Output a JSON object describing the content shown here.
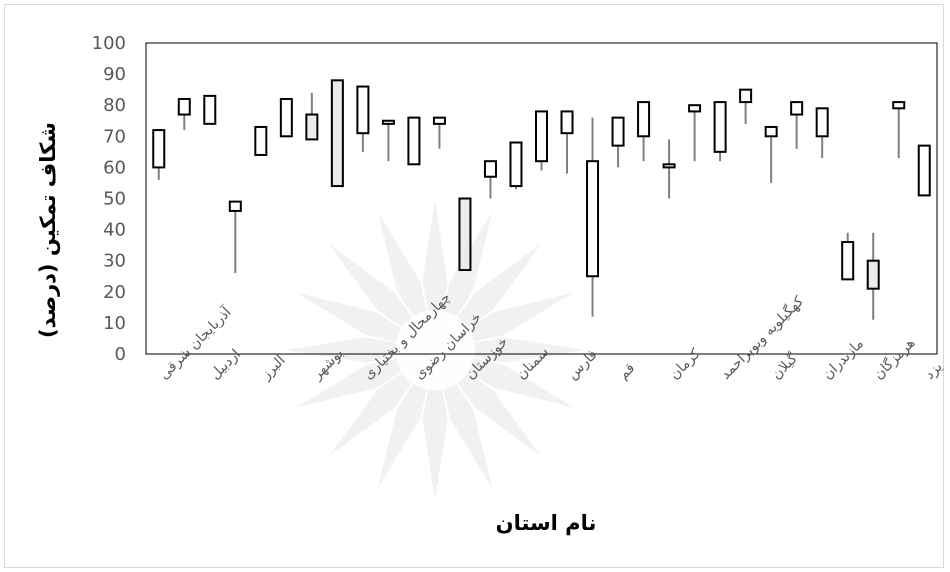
{
  "chart_data": {
    "type": "candlestick",
    "xlabel": "نام استان",
    "ylabel": "شکاف تمکین (درصد)",
    "ylim": [
      0,
      100
    ],
    "yticks": [
      0,
      10,
      20,
      30,
      40,
      50,
      60,
      70,
      80,
      90,
      100
    ],
    "grid": false,
    "legend": "none",
    "categories": [
      "آذربایجان شرقی",
      "",
      "اردبیل",
      "",
      "البرز",
      "",
      "بوشهر",
      "",
      "چهارمحال و بختیاری",
      "",
      "خراسان رضوی",
      "",
      "خوزستان",
      "",
      "سمنان",
      "",
      "فارس",
      "",
      "قم",
      "",
      "کرمان",
      "",
      "کهگیلویه وبویراحمد",
      "",
      "گیلان",
      "",
      "مازندران",
      "",
      "هرمزگان",
      "",
      "یزد"
    ],
    "values": [
      {
        "open": 72,
        "close": 60,
        "high": 72,
        "low": 56,
        "fill": "#ffffff"
      },
      {
        "open": 82,
        "close": 77,
        "high": 82,
        "low": 72,
        "fill": "#ffffff"
      },
      {
        "open": 83,
        "close": 74,
        "high": 83,
        "low": 74,
        "fill": "#ffffff"
      },
      {
        "open": 49,
        "close": 46,
        "high": 49,
        "low": 26,
        "fill": "#ffffff"
      },
      {
        "open": 73,
        "close": 64,
        "high": 73,
        "low": 64,
        "fill": "#ffffff"
      },
      {
        "open": 82,
        "close": 70,
        "high": 82,
        "low": 70,
        "fill": "#ffffff"
      },
      {
        "open": 77,
        "close": 69,
        "high": 84,
        "low": 69,
        "fill": "#ebebeb"
      },
      {
        "open": 88,
        "close": 54,
        "high": 88,
        "low": 54,
        "fill": "#ebebeb"
      },
      {
        "open": 86,
        "close": 71,
        "high": 86,
        "low": 65,
        "fill": "#ffffff"
      },
      {
        "open": 75,
        "close": 74,
        "high": 75,
        "low": 62,
        "fill": "#ffffff"
      },
      {
        "open": 76,
        "close": 61,
        "high": 76,
        "low": 61,
        "fill": "#ffffff"
      },
      {
        "open": 76,
        "close": 74,
        "high": 76,
        "low": 66,
        "fill": "#ffffff"
      },
      {
        "open": 50,
        "close": 27,
        "high": 50,
        "low": 27,
        "fill": "#ebebeb"
      },
      {
        "open": 62,
        "close": 57,
        "high": 62,
        "low": 50,
        "fill": "#ffffff"
      },
      {
        "open": 68,
        "close": 54,
        "high": 68,
        "low": 53,
        "fill": "#ffffff"
      },
      {
        "open": 78,
        "close": 62,
        "high": 78,
        "low": 59,
        "fill": "#ffffff"
      },
      {
        "open": 78,
        "close": 71,
        "high": 78,
        "low": 58,
        "fill": "#ffffff"
      },
      {
        "open": 62,
        "close": 25,
        "high": 76,
        "low": 12,
        "fill": "#ffffff"
      },
      {
        "open": 76,
        "close": 67,
        "high": 76,
        "low": 60,
        "fill": "#ffffff"
      },
      {
        "open": 81,
        "close": 70,
        "high": 81,
        "low": 62,
        "fill": "#ffffff"
      },
      {
        "open": 61,
        "close": 60,
        "high": 69,
        "low": 50,
        "fill": "#ffffff"
      },
      {
        "open": 80,
        "close": 78,
        "high": 80,
        "low": 62,
        "fill": "#ffffff"
      },
      {
        "open": 81,
        "close": 65,
        "high": 81,
        "low": 62,
        "fill": "#ffffff"
      },
      {
        "open": 85,
        "close": 81,
        "high": 85,
        "low": 74,
        "fill": "#ffffff"
      },
      {
        "open": 73,
        "close": 70,
        "high": 73,
        "low": 55,
        "fill": "#ffffff"
      },
      {
        "open": 81,
        "close": 77,
        "high": 81,
        "low": 66,
        "fill": "#ffffff"
      },
      {
        "open": 79,
        "close": 70,
        "high": 79,
        "low": 63,
        "fill": "#ffffff"
      },
      {
        "open": 36,
        "close": 24,
        "high": 39,
        "low": 24,
        "fill": "#ffffff"
      },
      {
        "open": 30,
        "close": 21,
        "high": 39,
        "low": 11,
        "fill": "#ebebeb"
      },
      {
        "open": 81,
        "close": 79,
        "high": 81,
        "low": 63,
        "fill": "#ffffff"
      },
      {
        "open": 67,
        "close": 51,
        "high": 67,
        "low": 51,
        "fill": "#ffffff"
      }
    ]
  },
  "colors": {
    "box_stroke": "#000000",
    "wick": "#808080",
    "plot_border": "#000000",
    "tick_text": "#595959",
    "filled_box": "#ebebeb",
    "watermark": "#e6e6e6"
  }
}
